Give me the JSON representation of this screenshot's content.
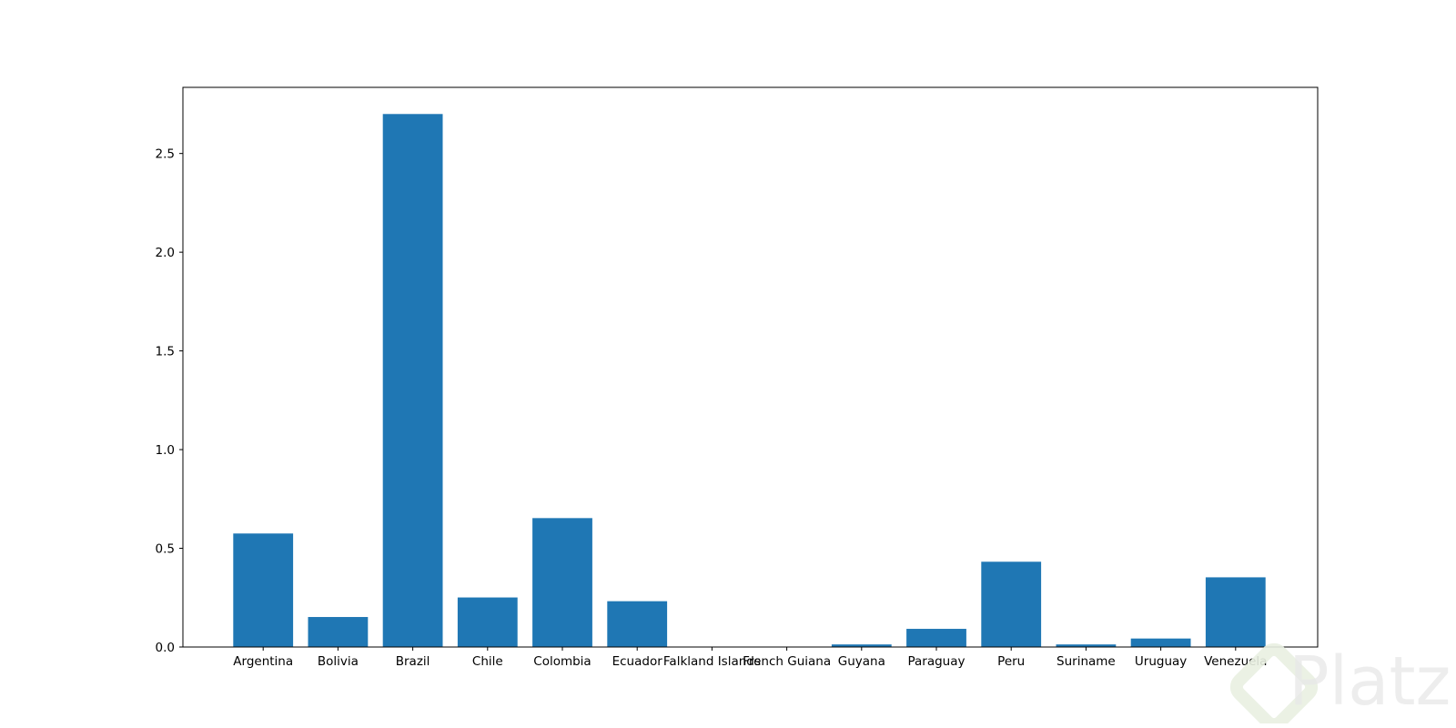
{
  "chart_data": {
    "type": "bar",
    "categories": [
      "Argentina",
      "Bolivia",
      "Brazil",
      "Chile",
      "Colombia",
      "Ecuador",
      "Falkland Islands",
      "French Guiana",
      "Guyana",
      "Paraguay",
      "Peru",
      "Suriname",
      "Uruguay",
      "Venezuela"
    ],
    "values": [
      0.575,
      0.152,
      2.7,
      0.251,
      0.653,
      0.232,
      0.0,
      0.0,
      0.013,
      0.092,
      0.432,
      0.013,
      0.043,
      0.353
    ],
    "title": "",
    "xlabel": "",
    "ylabel": "",
    "ylim": [
      0,
      2.835
    ],
    "yticks": [
      "0.0",
      "0.5",
      "1.0",
      "1.5",
      "2.0",
      "2.5"
    ],
    "grid": false,
    "colors": {
      "bar": "#1f77b4",
      "axes": "#000000"
    }
  },
  "watermark": {
    "text": "Platzi",
    "icon": "platzi-logo-icon",
    "color": "#e6e6e6"
  }
}
